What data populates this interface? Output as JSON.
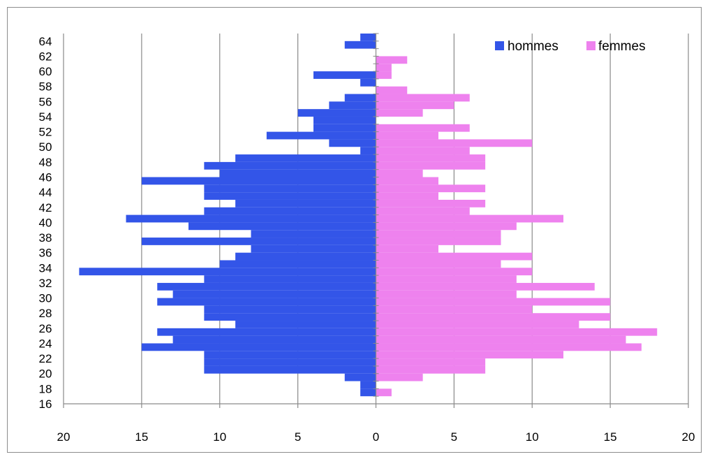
{
  "chart_data": {
    "type": "bar",
    "orientation": "horizontal",
    "layout": "population-pyramid",
    "title": "",
    "xlabel": "",
    "ylabel": "",
    "categories": [
      17,
      18,
      19,
      20,
      21,
      22,
      23,
      24,
      25,
      26,
      27,
      28,
      29,
      30,
      31,
      32,
      33,
      34,
      35,
      36,
      37,
      38,
      39,
      40,
      41,
      42,
      43,
      44,
      45,
      46,
      47,
      48,
      49,
      50,
      51,
      52,
      53,
      54,
      55,
      56,
      57,
      58,
      59,
      60,
      61,
      62,
      63,
      64,
      65
    ],
    "y_tick_labels": [
      "16",
      "18",
      "20",
      "22",
      "24",
      "26",
      "28",
      "30",
      "32",
      "34",
      "36",
      "38",
      "40",
      "42",
      "44",
      "46",
      "48",
      "50",
      "52",
      "54",
      "56",
      "58",
      "60",
      "62",
      "64"
    ],
    "y_range": [
      16,
      65
    ],
    "x_range": [
      -20,
      20
    ],
    "x_tick_values": [
      -20,
      -15,
      -10,
      -5,
      0,
      5,
      10,
      15,
      20
    ],
    "x_tick_labels": [
      "20",
      "15",
      "10",
      "5",
      "0",
      "5",
      "10",
      "15",
      "20"
    ],
    "grid": "vertical",
    "legend_position": "top-right",
    "series": [
      {
        "name": "hommes",
        "color": "#3355e8",
        "side": "left",
        "values": [
          0,
          1,
          1,
          2,
          11,
          11,
          11,
          15,
          13,
          14,
          9,
          11,
          11,
          14,
          13,
          14,
          11,
          19,
          10,
          9,
          8,
          15,
          8,
          12,
          16,
          11,
          9,
          11,
          11,
          15,
          10,
          11,
          9,
          1,
          3,
          7,
          4,
          4,
          5,
          3,
          2,
          0,
          1,
          4,
          0,
          0,
          0,
          2,
          1
        ]
      },
      {
        "name": "femmes",
        "color": "#ee82ee",
        "side": "right",
        "values": [
          0,
          1,
          0,
          3,
          7,
          7,
          12,
          17,
          16,
          18,
          13,
          15,
          10,
          15,
          9,
          14,
          9,
          10,
          8,
          10,
          4,
          8,
          8,
          9,
          12,
          6,
          7,
          4,
          7,
          4,
          3,
          7,
          7,
          6,
          10,
          4,
          6,
          0,
          3,
          5,
          6,
          2,
          0,
          1,
          1,
          2,
          0,
          0,
          0
        ]
      }
    ]
  }
}
